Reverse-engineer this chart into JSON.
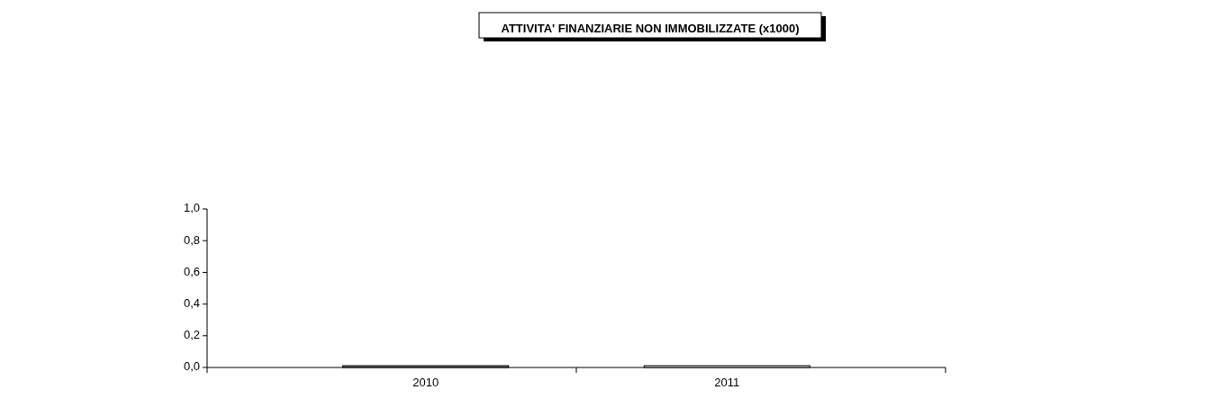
{
  "chart_data": {
    "type": "bar",
    "title": "ATTIVITA' FINANZIARIE NON IMMOBILIZZATE (x1000)",
    "categories": [
      "2010",
      "2011"
    ],
    "values": [
      0,
      0
    ],
    "colors": [
      "#7a7a7a",
      "#e4e4e4"
    ],
    "ylim": [
      0,
      1
    ],
    "yticks": [
      {
        "value": 0,
        "label": "0,0"
      },
      {
        "value": 0.2,
        "label": "0,2"
      },
      {
        "value": 0.4,
        "label": "0,4"
      },
      {
        "value": 0.6,
        "label": "0,6"
      },
      {
        "value": 0.8,
        "label": "0,8"
      },
      {
        "value": 1,
        "label": "1,0"
      }
    ],
    "grid": false
  }
}
